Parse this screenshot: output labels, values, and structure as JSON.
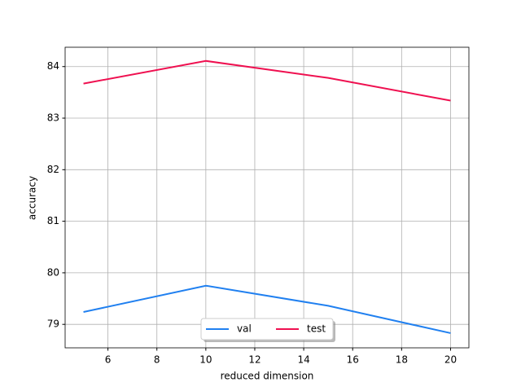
{
  "chart_data": {
    "type": "line",
    "x_label": "reduced dimension",
    "y_label": "accuracy",
    "x": [
      5,
      10,
      15,
      20
    ],
    "series": [
      {
        "name": "val",
        "color": "#2080f0",
        "values": [
          79.24,
          79.75,
          79.36,
          78.83
        ]
      },
      {
        "name": "test",
        "color": "#ef1050",
        "values": [
          83.67,
          84.11,
          83.78,
          83.34
        ]
      }
    ],
    "xlim": [
      4.25,
      20.75
    ],
    "ylim": [
      78.545,
      84.375
    ],
    "xticks": [
      6,
      8,
      10,
      12,
      14,
      16,
      18,
      20
    ],
    "yticks": [
      79,
      80,
      81,
      82,
      83,
      84
    ],
    "grid": true,
    "legend": "lower center"
  }
}
